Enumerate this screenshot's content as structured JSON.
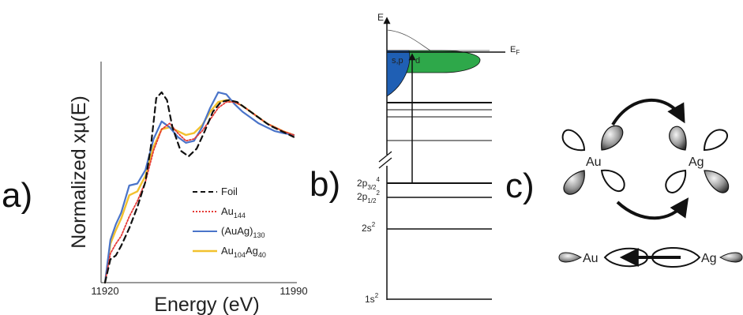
{
  "panels": {
    "a": "a)",
    "b": "b)",
    "c": "c)"
  },
  "chart": {
    "xlabel": "Energy (eV)",
    "ylabel": "Normalized xμ(E)",
    "x_tick_labels": [
      "11920",
      "11990"
    ],
    "legend": [
      {
        "label": "Foil",
        "sub": "",
        "tail_base": "",
        "tail_sub": "",
        "color": "#111111",
        "style": "dashed"
      },
      {
        "label": "Au",
        "sub": "144",
        "tail_base": "",
        "tail_sub": "",
        "color": "#e53935",
        "style": "dotted"
      },
      {
        "label": "(AuAg)",
        "sub": "130",
        "tail_base": "",
        "tail_sub": "",
        "color": "#4a74c9",
        "style": "solid"
      },
      {
        "label": "Au",
        "sub": "104",
        "tail_base": "Ag",
        "tail_sub": "40",
        "color": "#f2c12e",
        "style": "solid"
      }
    ]
  },
  "chart_data": {
    "type": "line",
    "xlim": [
      11920,
      11990
    ],
    "ylim": [
      0,
      1
    ],
    "grid": false,
    "legend_position": "bottom-right",
    "x_tick_labels": [
      "11920",
      "11990"
    ],
    "xlabel": "Energy (eV)",
    "ylabel": "Normalized xμ(E)",
    "series": [
      {
        "name": "Foil",
        "x": [
          11920,
          11922,
          11924,
          11926,
          11929,
          11932,
          11935,
          11937,
          11939,
          11941,
          11943,
          11945,
          11948,
          11951,
          11954,
          11957,
          11960,
          11963,
          11966,
          11969,
          11972,
          11975,
          11978,
          11981,
          11984,
          11987,
          11990
        ],
        "y": [
          0.0,
          0.12,
          0.14,
          0.19,
          0.28,
          0.39,
          0.52,
          0.7,
          0.95,
          0.98,
          0.94,
          0.8,
          0.68,
          0.65,
          0.69,
          0.78,
          0.88,
          0.93,
          0.94,
          0.93,
          0.9,
          0.87,
          0.84,
          0.81,
          0.79,
          0.77,
          0.75
        ]
      },
      {
        "name": "Au144",
        "x": [
          11920,
          11922,
          11924,
          11926,
          11929,
          11932,
          11935,
          11938,
          11941,
          11944,
          11947,
          11950,
          11953,
          11956,
          11959,
          11962,
          11965,
          11968,
          11971,
          11974,
          11977,
          11980,
          11983,
          11986,
          11990
        ],
        "y": [
          0.0,
          0.15,
          0.2,
          0.24,
          0.34,
          0.42,
          0.52,
          0.68,
          0.79,
          0.82,
          0.77,
          0.73,
          0.74,
          0.78,
          0.84,
          0.9,
          0.93,
          0.93,
          0.91,
          0.88,
          0.85,
          0.82,
          0.8,
          0.78,
          0.76
        ]
      },
      {
        "name": "(AuAg)130",
        "x": [
          11920,
          11922,
          11924,
          11926,
          11929,
          11932,
          11935,
          11938,
          11941,
          11944,
          11947,
          11950,
          11953,
          11956,
          11959,
          11962,
          11965,
          11968,
          11971,
          11974,
          11977,
          11980,
          11983,
          11986,
          11990
        ],
        "y": [
          0.0,
          0.22,
          0.3,
          0.36,
          0.5,
          0.51,
          0.58,
          0.74,
          0.83,
          0.8,
          0.75,
          0.72,
          0.73,
          0.8,
          0.9,
          0.98,
          0.97,
          0.92,
          0.88,
          0.85,
          0.82,
          0.8,
          0.78,
          0.77,
          0.76
        ]
      },
      {
        "name": "Au104Ag40",
        "x": [
          11920,
          11922,
          11924,
          11926,
          11929,
          11932,
          11935,
          11938,
          11941,
          11944,
          11947,
          11950,
          11953,
          11956,
          11959,
          11962,
          11965,
          11968,
          11971,
          11974,
          11977,
          11980,
          11983,
          11986,
          11990
        ],
        "y": [
          0.0,
          0.2,
          0.27,
          0.33,
          0.45,
          0.47,
          0.55,
          0.7,
          0.79,
          0.8,
          0.78,
          0.76,
          0.77,
          0.81,
          0.88,
          0.93,
          0.94,
          0.93,
          0.91,
          0.88,
          0.85,
          0.82,
          0.8,
          0.78,
          0.76
        ]
      }
    ]
  },
  "energy_diagram": {
    "axis_label": "E",
    "fermi": {
      "base": "E",
      "sub": "F"
    },
    "band_sp": "s,p",
    "band_d": "d",
    "levels": [
      {
        "base": "2p",
        "sub": "3/2",
        "sup": "4"
      },
      {
        "base": "2p",
        "sub": "1/2",
        "sup": "2"
      },
      {
        "base": "2s",
        "sub": "",
        "sup": "2"
      },
      {
        "base": "1s",
        "sub": "",
        "sup": "2"
      }
    ],
    "colors": {
      "sp_band": "#1f5fb4",
      "d_band": "#2ea84a"
    }
  },
  "orbital_diagram": {
    "atom_left": "Au",
    "atom_right": "Ag",
    "bottom_left": "Au",
    "bottom_right": "Ag"
  }
}
